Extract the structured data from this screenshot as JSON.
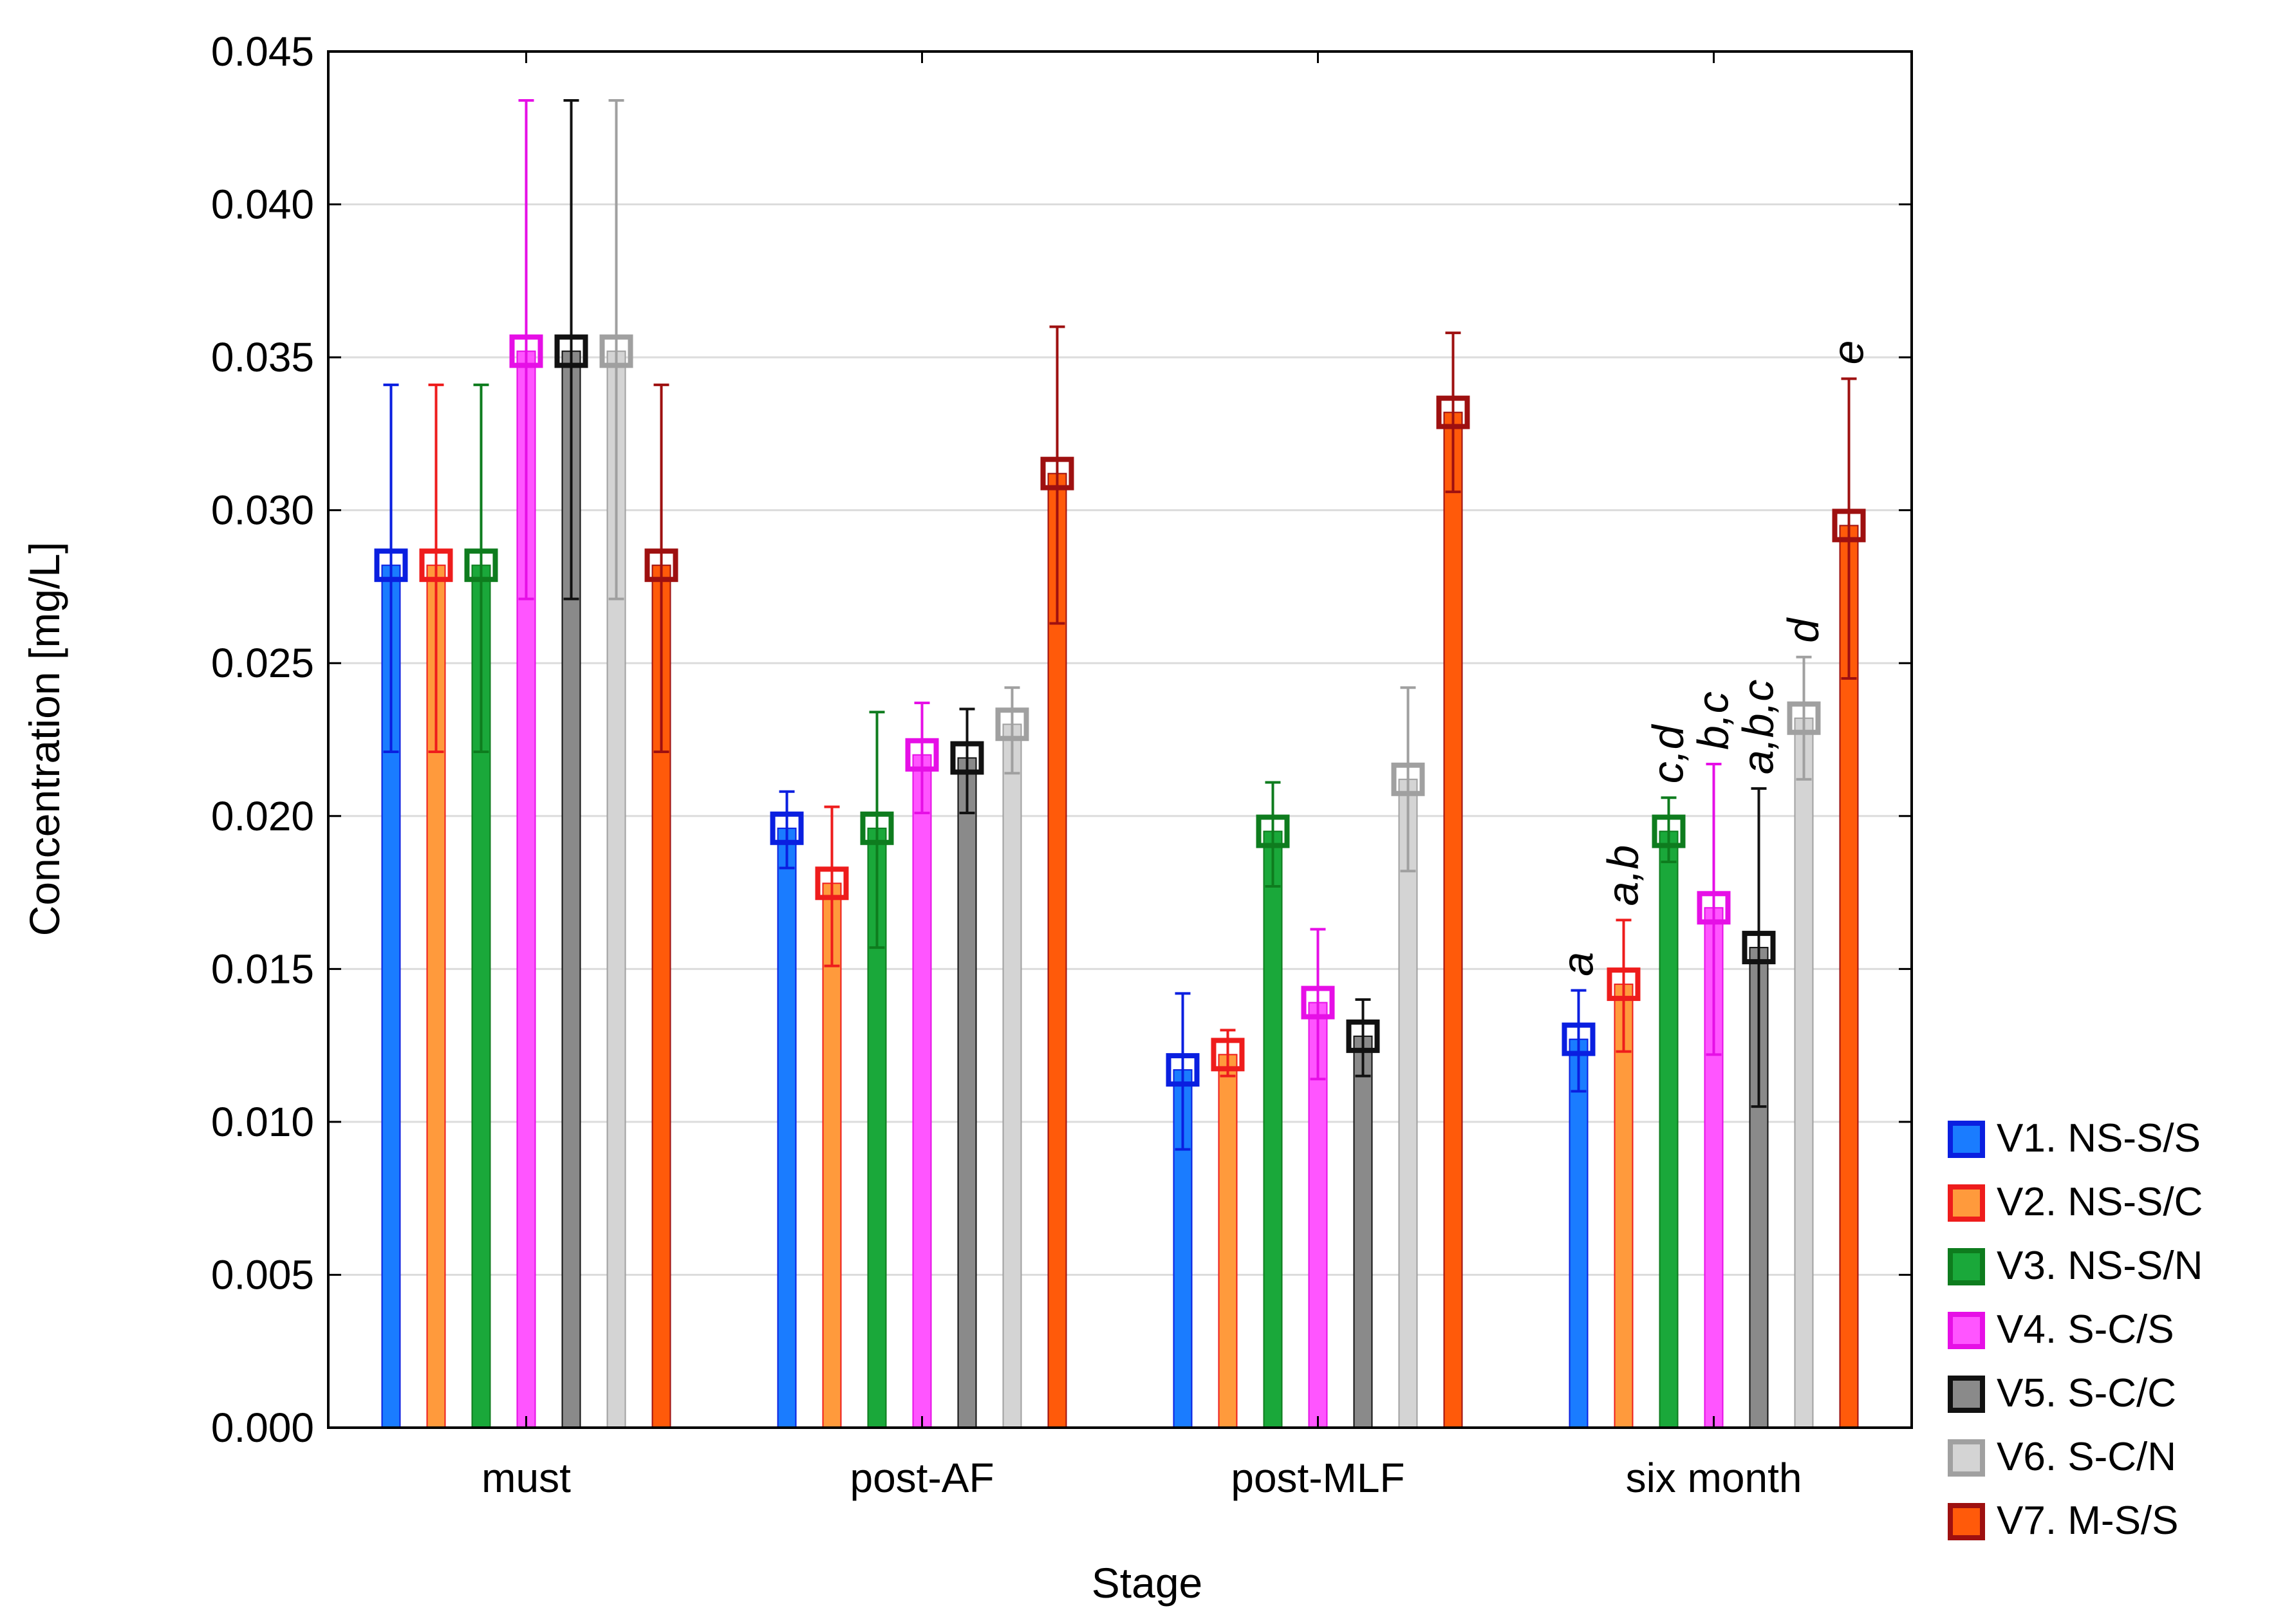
{
  "chart_data": {
    "type": "bar",
    "title": "",
    "xlabel": "Stage",
    "ylabel": "Concentration [mg/L]",
    "ylim": [
      0,
      0.045
    ],
    "yticks": [
      "0.000",
      "0.005",
      "0.010",
      "0.015",
      "0.020",
      "0.025",
      "0.030",
      "0.035",
      "0.040",
      "0.045"
    ],
    "categories": [
      "must",
      "post-AF",
      "post-MLF",
      "six month"
    ],
    "grid": true,
    "legend_position": "bottom-right",
    "series": [
      {
        "name": "V1. NS-S/S",
        "bar_color": "#1a7cff",
        "marker_color": "#0a1fe0",
        "values": [
          0.0282,
          0.0196,
          0.0117,
          0.0127
        ],
        "err_low": [
          0.0221,
          0.0183,
          0.0091,
          0.011
        ],
        "err_high": [
          0.0341,
          0.0208,
          0.0142,
          0.0143
        ]
      },
      {
        "name": "V2. NS-S/C",
        "bar_color": "#ff9a3c",
        "marker_color": "#ee1c1c",
        "values": [
          0.0282,
          0.0178,
          0.0122,
          0.0145
        ],
        "err_low": [
          0.0221,
          0.0151,
          0.0115,
          0.0123
        ],
        "err_high": [
          0.0341,
          0.0203,
          0.013,
          0.0166
        ]
      },
      {
        "name": "V3. NS-S/N",
        "bar_color": "#1aa83a",
        "marker_color": "#0e7c1e",
        "values": [
          0.0282,
          0.0196,
          0.0195,
          0.0195
        ],
        "err_low": [
          0.0221,
          0.0157,
          0.0177,
          0.0185
        ],
        "err_high": [
          0.0341,
          0.0234,
          0.0211,
          0.0206
        ]
      },
      {
        "name": "V4. S-C/S",
        "bar_color": "#ff55ff",
        "marker_color": "#e60fe6",
        "values": [
          0.0352,
          0.022,
          0.0139,
          0.017
        ],
        "err_low": [
          0.0271,
          0.0201,
          0.0114,
          0.0122
        ],
        "err_high": [
          0.0434,
          0.0237,
          0.0163,
          0.0217
        ]
      },
      {
        "name": "V5. S-C/C",
        "bar_color": "#8a8a8a",
        "marker_color": "#111111",
        "values": [
          0.0352,
          0.0219,
          0.0128,
          0.0157
        ],
        "err_low": [
          0.0271,
          0.0201,
          0.0115,
          0.0105
        ],
        "err_high": [
          0.0434,
          0.0235,
          0.014,
          0.0209
        ]
      },
      {
        "name": "V6. S-C/N",
        "bar_color": "#d4d4d4",
        "marker_color": "#a0a0a0",
        "values": [
          0.0352,
          0.023,
          0.0212,
          0.0232
        ],
        "err_low": [
          0.0271,
          0.0214,
          0.0182,
          0.0212
        ],
        "err_high": [
          0.0434,
          0.0242,
          0.0242,
          0.0252
        ]
      },
      {
        "name": "V7. M-S/S",
        "bar_color": "#ff5a0a",
        "marker_color": "#9e1010",
        "values": [
          0.0282,
          0.0312,
          0.0332,
          0.0295
        ],
        "err_low": [
          0.0221,
          0.0263,
          0.0306,
          0.0245
        ],
        "err_high": [
          0.0341,
          0.036,
          0.0358,
          0.0343
        ]
      }
    ],
    "annotations": [
      {
        "category": "six month",
        "series": "V1. NS-S/S",
        "text": "a"
      },
      {
        "category": "six month",
        "series": "V2. NS-S/C",
        "text": "a,b"
      },
      {
        "category": "six month",
        "series": "V3. NS-S/N",
        "text": "c,d"
      },
      {
        "category": "six month",
        "series": "V4. S-C/S",
        "text": "b,c"
      },
      {
        "category": "six month",
        "series": "V5. S-C/C",
        "text": "a,b,c"
      },
      {
        "category": "six month",
        "series": "V6. S-C/N",
        "text": "d"
      },
      {
        "category": "six month",
        "series": "V7. M-S/S",
        "text": "e"
      }
    ]
  }
}
